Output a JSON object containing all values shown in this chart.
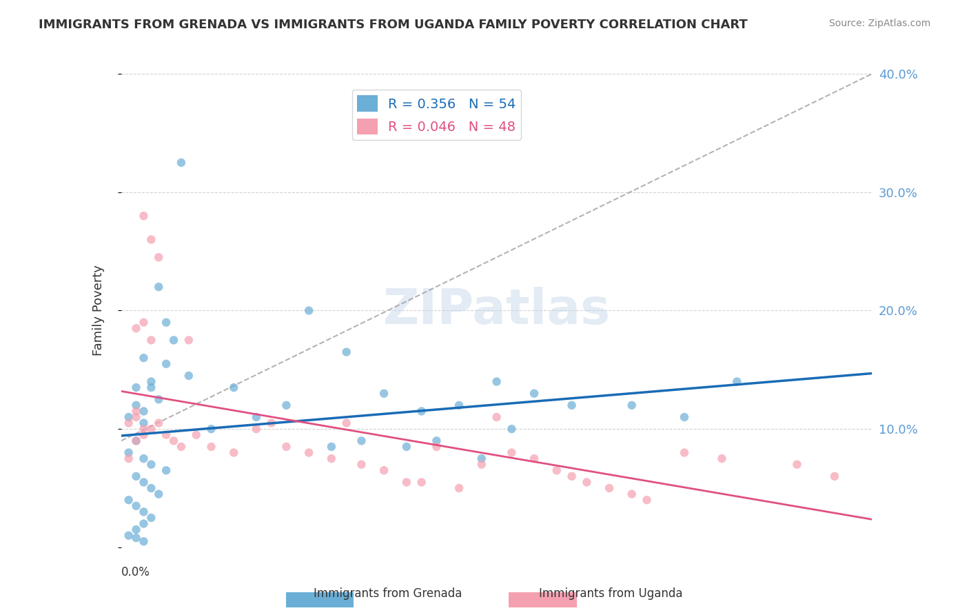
{
  "title": "IMMIGRANTS FROM GRENADA VS IMMIGRANTS FROM UGANDA FAMILY POVERTY CORRELATION CHART",
  "source": "Source: ZipAtlas.com",
  "ylabel": "Family Poverty",
  "xlim": [
    0.0,
    0.1
  ],
  "ylim": [
    0.0,
    0.4
  ],
  "legend_grenada_R": "0.356",
  "legend_grenada_N": "54",
  "legend_uganda_R": "0.046",
  "legend_uganda_N": "48",
  "grenada_color": "#6baed6",
  "uganda_color": "#f4a0b0",
  "grenada_line_color": "#1a6bb5",
  "uganda_line_color": "#e05080",
  "diagonal_color": "#a0a0a0",
  "background_color": "#ffffff",
  "grid_color": "#d0d0d0",
  "scatter_alpha": 0.7,
  "scatter_size": 80,
  "grenada_x": [
    0.002,
    0.005,
    0.006,
    0.003,
    0.004,
    0.002,
    0.001,
    0.003,
    0.008,
    0.007,
    0.006,
    0.009,
    0.004,
    0.005,
    0.003,
    0.002,
    0.001,
    0.003,
    0.004,
    0.006,
    0.002,
    0.003,
    0.004,
    0.005,
    0.001,
    0.002,
    0.003,
    0.004,
    0.003,
    0.002,
    0.001,
    0.002,
    0.003,
    0.015,
    0.012,
    0.018,
    0.022,
    0.025,
    0.03,
    0.035,
    0.04,
    0.045,
    0.05,
    0.055,
    0.06,
    0.042,
    0.038,
    0.048,
    0.052,
    0.028,
    0.032,
    0.068,
    0.075,
    0.082
  ],
  "grenada_y": [
    0.12,
    0.22,
    0.19,
    0.16,
    0.14,
    0.135,
    0.11,
    0.105,
    0.325,
    0.175,
    0.155,
    0.145,
    0.135,
    0.125,
    0.115,
    0.09,
    0.08,
    0.075,
    0.07,
    0.065,
    0.06,
    0.055,
    0.05,
    0.045,
    0.04,
    0.035,
    0.03,
    0.025,
    0.02,
    0.015,
    0.01,
    0.008,
    0.005,
    0.135,
    0.1,
    0.11,
    0.12,
    0.2,
    0.165,
    0.13,
    0.115,
    0.12,
    0.14,
    0.13,
    0.12,
    0.09,
    0.085,
    0.075,
    0.1,
    0.085,
    0.09,
    0.12,
    0.11,
    0.14
  ],
  "uganda_x": [
    0.001,
    0.002,
    0.003,
    0.004,
    0.002,
    0.003,
    0.001,
    0.002,
    0.003,
    0.004,
    0.005,
    0.003,
    0.002,
    0.004,
    0.005,
    0.006,
    0.007,
    0.008,
    0.009,
    0.01,
    0.012,
    0.015,
    0.018,
    0.02,
    0.022,
    0.025,
    0.028,
    0.03,
    0.032,
    0.035,
    0.04,
    0.045,
    0.05,
    0.055,
    0.06,
    0.042,
    0.038,
    0.048,
    0.052,
    0.058,
    0.062,
    0.065,
    0.068,
    0.07,
    0.075,
    0.08,
    0.09,
    0.095
  ],
  "uganda_y": [
    0.105,
    0.09,
    0.095,
    0.1,
    0.115,
    0.1,
    0.075,
    0.11,
    0.28,
    0.26,
    0.245,
    0.19,
    0.185,
    0.175,
    0.105,
    0.095,
    0.09,
    0.085,
    0.175,
    0.095,
    0.085,
    0.08,
    0.1,
    0.105,
    0.085,
    0.08,
    0.075,
    0.105,
    0.07,
    0.065,
    0.055,
    0.05,
    0.11,
    0.075,
    0.06,
    0.085,
    0.055,
    0.07,
    0.08,
    0.065,
    0.055,
    0.05,
    0.045,
    0.04,
    0.08,
    0.075,
    0.07,
    0.06
  ]
}
